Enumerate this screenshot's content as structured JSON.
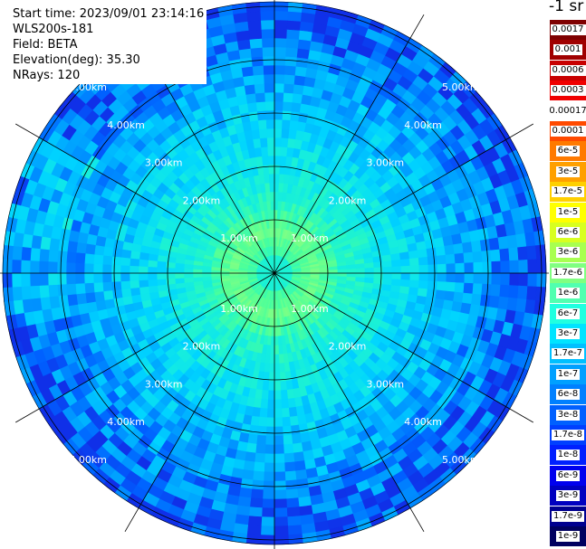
{
  "info": {
    "start_time": "Start time: 2023/09/01 23:14:16",
    "instrument": "WLS200s-181",
    "field": "Field: BETA",
    "elevation": "Elevation(deg): 35.30",
    "nrays": "NRays: 120"
  },
  "colorbar": {
    "units": "-1 sr",
    "labels": [
      "0.0017",
      "0.001",
      "0.0006",
      "0.0003",
      "0.00017",
      "0.0001",
      "6e-5",
      "3e-5",
      "1.7e-5",
      "1e-5",
      "6e-6",
      "3e-6",
      "1.7e-6",
      "1e-6",
      "6e-7",
      "3e-7",
      "1.7e-7",
      "1e-7",
      "6e-8",
      "3e-8",
      "1.7e-8",
      "1e-8",
      "6e-9",
      "3e-9",
      "1.7e-9",
      "1e-9"
    ],
    "colors": [
      "#7f0000",
      "#a00000",
      "#c80000",
      "#f00000",
      "#ffffff",
      "#ff4a00",
      "#ff7a00",
      "#ffa000",
      "#ffd000",
      "#ffff00",
      "#d8ff20",
      "#a8ff50",
      "#80ff80",
      "#50ffb0",
      "#20ffe0",
      "#00e4ff",
      "#00c0ff",
      "#00a0ff",
      "#0080ff",
      "#0060ff",
      "#0040ff",
      "#0020ff",
      "#0000ee",
      "#0000c0",
      "#000090",
      "#000060"
    ]
  },
  "range_labels": [
    "1.00km",
    "2.00km",
    "3.00km",
    "4.00km",
    "5.00km"
  ]
}
